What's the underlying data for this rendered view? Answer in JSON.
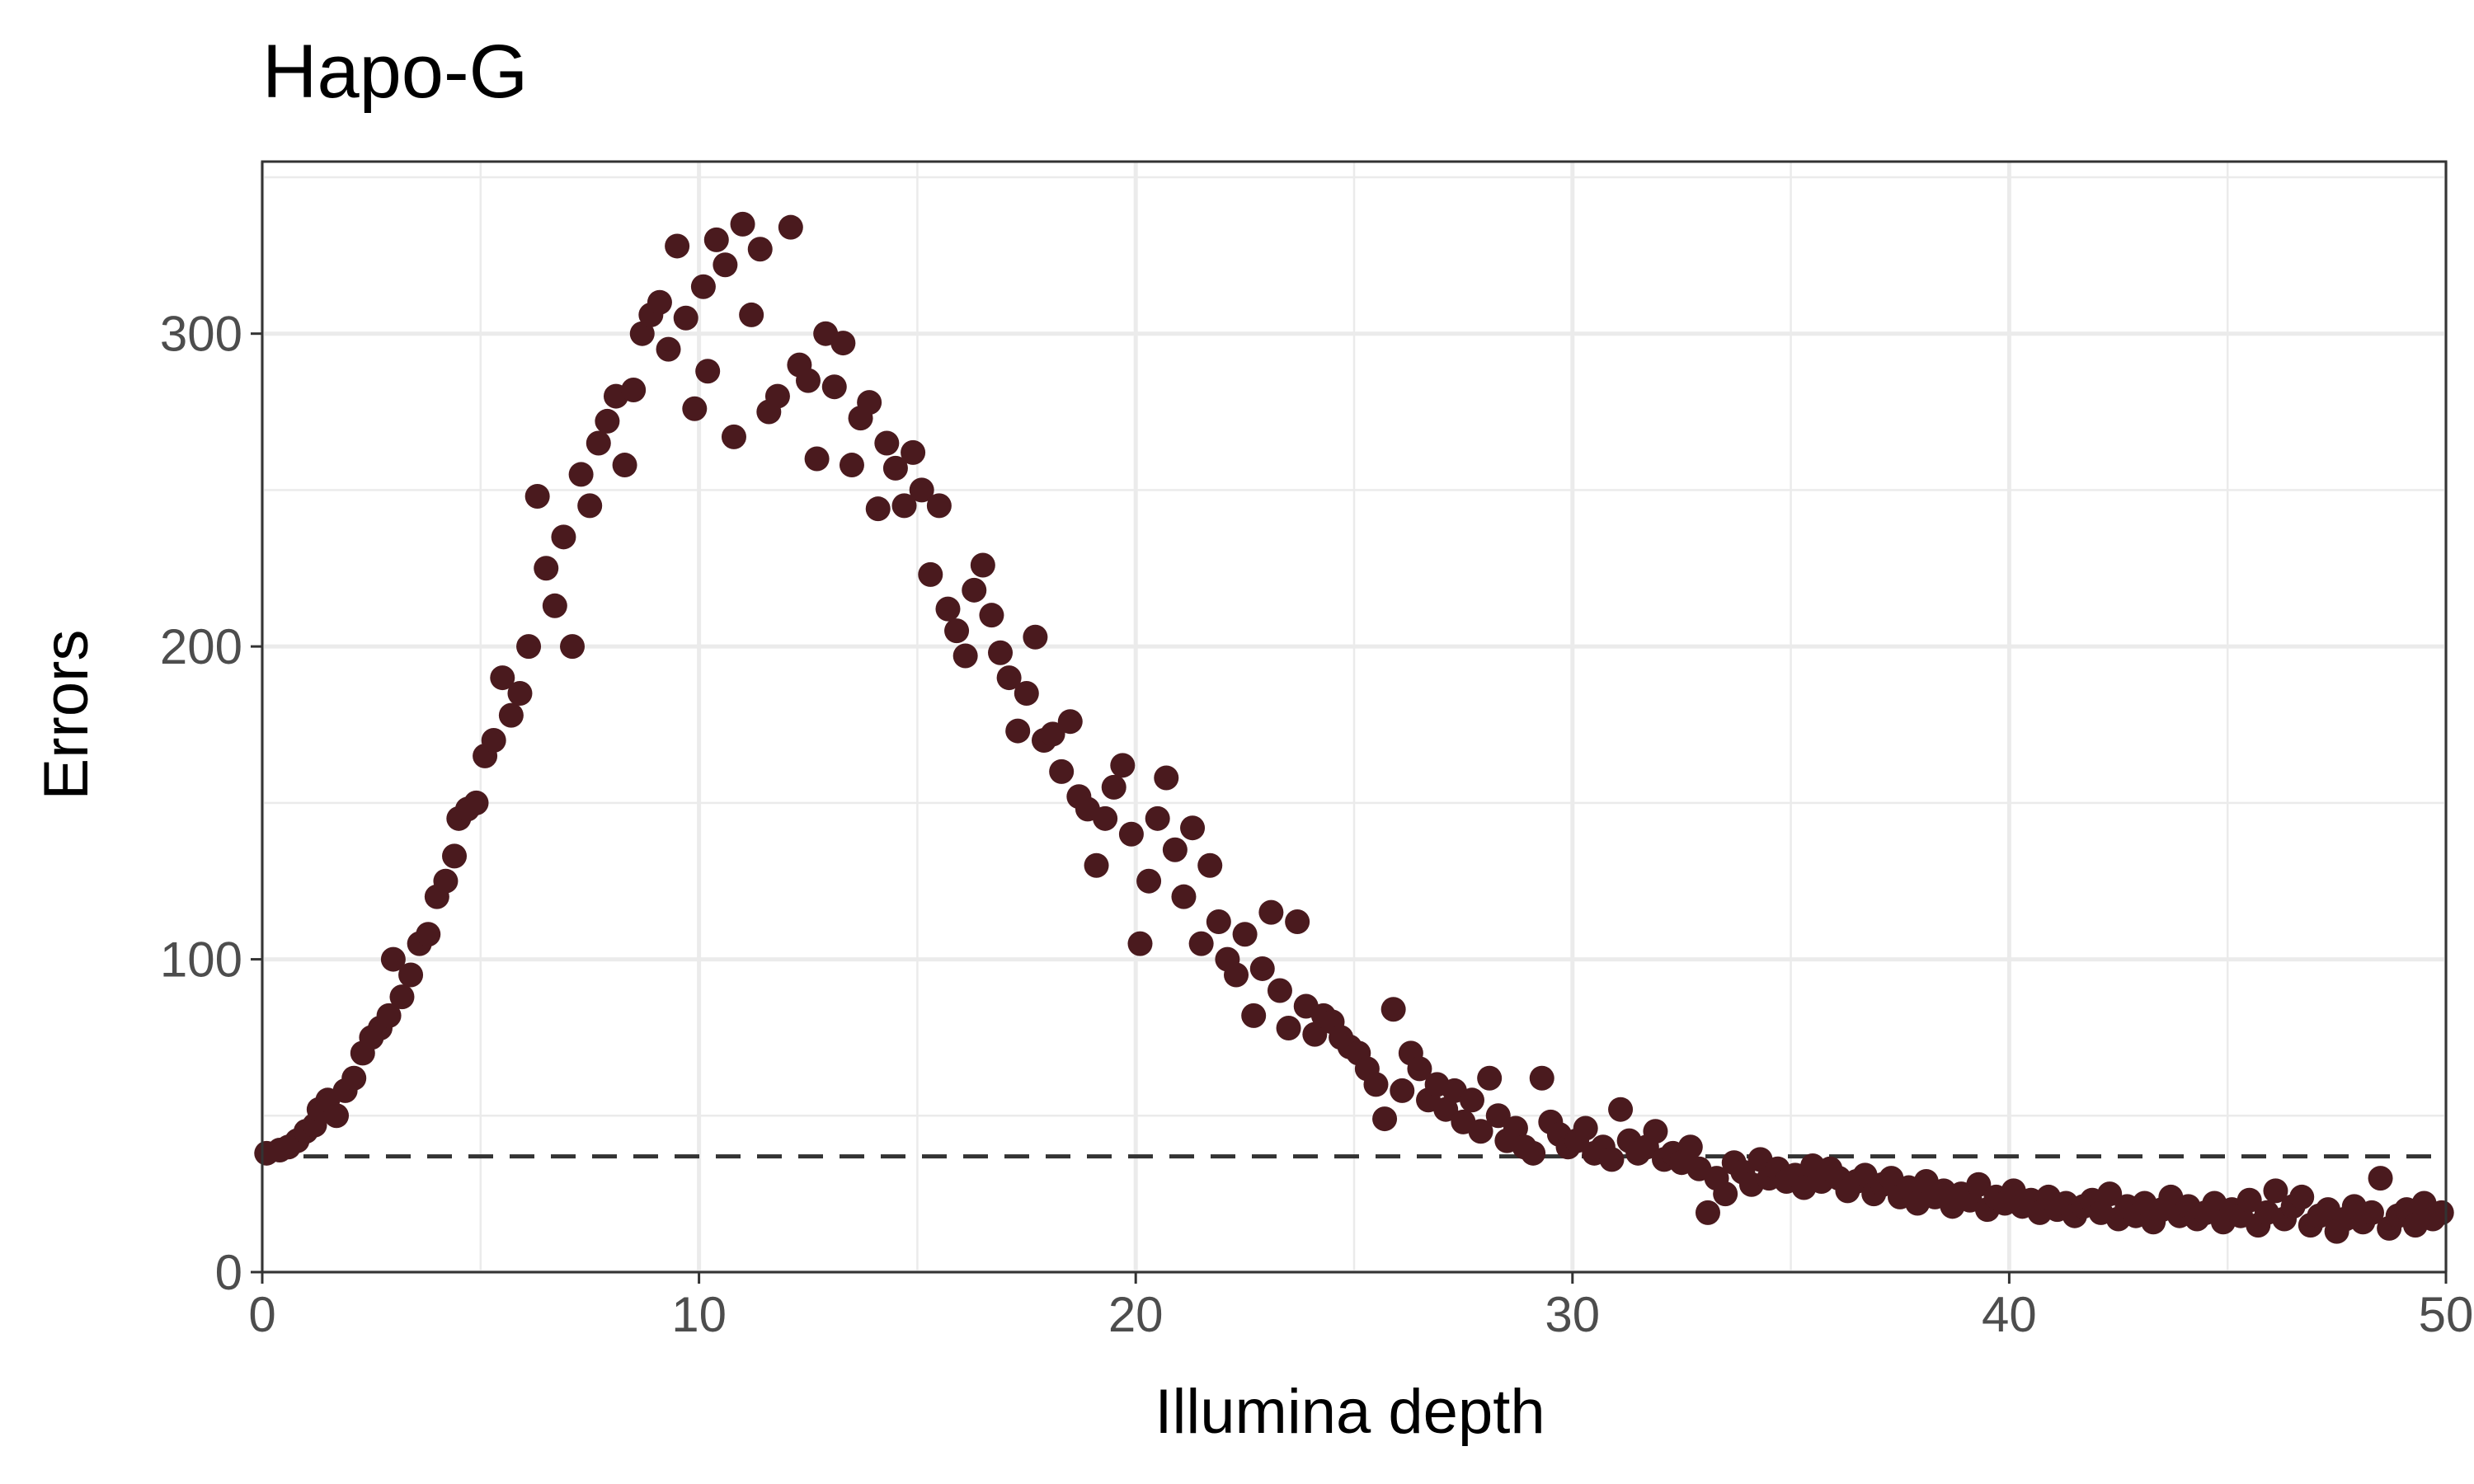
{
  "chart_data": {
    "type": "scatter",
    "title": "Hapo-G",
    "xlabel": "Illumina depth",
    "ylabel": "Errors",
    "xlim": [
      0,
      50
    ],
    "ylim": [
      0,
      355
    ],
    "x_ticks": [
      0,
      10,
      20,
      30,
      40,
      50
    ],
    "y_ticks": [
      0,
      100,
      200,
      300
    ],
    "grid": true,
    "legend": "none",
    "reference_line": {
      "y": 37,
      "style": "dashed"
    },
    "colors": {
      "points": "#4a1a1e",
      "reference_line": "#333333",
      "grid": "#ebebeb",
      "panel_border": "#333333"
    },
    "series": [
      {
        "points": [
          [
            0.1,
            38
          ],
          [
            0.4,
            39
          ],
          [
            0.6,
            40
          ],
          [
            0.8,
            42
          ],
          [
            1.0,
            45
          ],
          [
            1.2,
            47
          ],
          [
            1.3,
            52
          ],
          [
            1.5,
            55
          ],
          [
            1.7,
            50
          ],
          [
            1.9,
            58
          ],
          [
            2.1,
            62
          ],
          [
            2.3,
            70
          ],
          [
            2.5,
            75
          ],
          [
            2.7,
            78
          ],
          [
            2.9,
            82
          ],
          [
            3.0,
            100
          ],
          [
            3.2,
            88
          ],
          [
            3.4,
            95
          ],
          [
            3.6,
            105
          ],
          [
            3.8,
            108
          ],
          [
            4.0,
            120
          ],
          [
            4.2,
            125
          ],
          [
            4.4,
            133
          ],
          [
            4.5,
            145
          ],
          [
            4.7,
            148
          ],
          [
            4.9,
            150
          ],
          [
            5.1,
            165
          ],
          [
            5.3,
            170
          ],
          [
            5.5,
            190
          ],
          [
            5.7,
            178
          ],
          [
            5.9,
            185
          ],
          [
            6.1,
            200
          ],
          [
            6.3,
            248
          ],
          [
            6.5,
            225
          ],
          [
            6.7,
            213
          ],
          [
            6.9,
            235
          ],
          [
            7.1,
            200
          ],
          [
            7.3,
            255
          ],
          [
            7.5,
            245
          ],
          [
            7.7,
            265
          ],
          [
            7.9,
            272
          ],
          [
            8.1,
            280
          ],
          [
            8.3,
            258
          ],
          [
            8.5,
            282
          ],
          [
            8.7,
            300
          ],
          [
            8.9,
            306
          ],
          [
            9.1,
            310
          ],
          [
            9.3,
            295
          ],
          [
            9.5,
            328
          ],
          [
            9.7,
            305
          ],
          [
            9.9,
            276
          ],
          [
            10.1,
            315
          ],
          [
            10.2,
            288
          ],
          [
            10.4,
            330
          ],
          [
            10.6,
            322
          ],
          [
            10.8,
            267
          ],
          [
            11.0,
            335
          ],
          [
            11.2,
            306
          ],
          [
            11.4,
            327
          ],
          [
            11.6,
            275
          ],
          [
            11.8,
            280
          ],
          [
            12.1,
            334
          ],
          [
            12.3,
            290
          ],
          [
            12.5,
            285
          ],
          [
            12.7,
            260
          ],
          [
            12.9,
            300
          ],
          [
            13.1,
            283
          ],
          [
            13.3,
            297
          ],
          [
            13.5,
            258
          ],
          [
            13.7,
            273
          ],
          [
            13.9,
            278
          ],
          [
            14.1,
            244
          ],
          [
            14.3,
            265
          ],
          [
            14.5,
            257
          ],
          [
            14.7,
            245
          ],
          [
            14.9,
            262
          ],
          [
            15.1,
            250
          ],
          [
            15.3,
            223
          ],
          [
            15.5,
            245
          ],
          [
            15.7,
            212
          ],
          [
            15.9,
            205
          ],
          [
            16.1,
            197
          ],
          [
            16.3,
            218
          ],
          [
            16.5,
            226
          ],
          [
            16.7,
            210
          ],
          [
            16.9,
            198
          ],
          [
            17.1,
            190
          ],
          [
            17.3,
            173
          ],
          [
            17.5,
            185
          ],
          [
            17.7,
            203
          ],
          [
            17.9,
            170
          ],
          [
            18.1,
            172
          ],
          [
            18.3,
            160
          ],
          [
            18.5,
            176
          ],
          [
            18.7,
            152
          ],
          [
            18.9,
            148
          ],
          [
            19.1,
            130
          ],
          [
            19.3,
            145
          ],
          [
            19.5,
            155
          ],
          [
            19.7,
            162
          ],
          [
            19.9,
            140
          ],
          [
            20.1,
            105
          ],
          [
            20.3,
            125
          ],
          [
            20.5,
            145
          ],
          [
            20.7,
            158
          ],
          [
            20.9,
            135
          ],
          [
            21.1,
            120
          ],
          [
            21.3,
            142
          ],
          [
            21.5,
            105
          ],
          [
            21.7,
            130
          ],
          [
            21.9,
            112
          ],
          [
            22.1,
            100
          ],
          [
            22.3,
            95
          ],
          [
            22.5,
            108
          ],
          [
            22.7,
            82
          ],
          [
            22.9,
            97
          ],
          [
            23.1,
            115
          ],
          [
            23.3,
            90
          ],
          [
            23.5,
            78
          ],
          [
            23.7,
            112
          ],
          [
            23.9,
            85
          ],
          [
            24.1,
            76
          ],
          [
            24.3,
            82
          ],
          [
            24.5,
            80
          ],
          [
            24.7,
            75
          ],
          [
            24.9,
            72
          ],
          [
            25.1,
            70
          ],
          [
            25.3,
            65
          ],
          [
            25.5,
            60
          ],
          [
            25.7,
            49
          ],
          [
            25.9,
            84
          ],
          [
            26.1,
            58
          ],
          [
            26.3,
            70
          ],
          [
            26.5,
            65
          ],
          [
            26.7,
            55
          ],
          [
            26.9,
            60
          ],
          [
            27.1,
            52
          ],
          [
            27.3,
            58
          ],
          [
            27.5,
            48
          ],
          [
            27.7,
            55
          ],
          [
            27.9,
            45
          ],
          [
            28.1,
            62
          ],
          [
            28.3,
            50
          ],
          [
            28.5,
            42
          ],
          [
            28.7,
            46
          ],
          [
            28.9,
            40
          ],
          [
            29.1,
            38
          ],
          [
            29.3,
            62
          ],
          [
            29.5,
            48
          ],
          [
            29.7,
            44
          ],
          [
            29.9,
            40
          ],
          [
            30.1,
            42
          ],
          [
            30.3,
            46
          ],
          [
            30.5,
            38
          ],
          [
            30.7,
            40
          ],
          [
            30.9,
            36
          ],
          [
            31.1,
            52
          ],
          [
            31.3,
            42
          ],
          [
            31.5,
            38
          ],
          [
            31.7,
            40
          ],
          [
            31.9,
            45
          ],
          [
            32.1,
            36
          ],
          [
            32.3,
            38
          ],
          [
            32.5,
            35
          ],
          [
            32.7,
            40
          ],
          [
            32.9,
            33
          ],
          [
            33.1,
            19
          ],
          [
            33.3,
            30
          ],
          [
            33.5,
            25
          ],
          [
            33.7,
            35
          ],
          [
            33.9,
            32
          ],
          [
            34.1,
            28
          ],
          [
            34.3,
            36
          ],
          [
            34.5,
            30
          ],
          [
            34.7,
            33
          ],
          [
            34.9,
            29
          ],
          [
            35.1,
            31
          ],
          [
            35.3,
            27
          ],
          [
            35.5,
            34
          ],
          [
            35.7,
            29
          ],
          [
            35.9,
            33
          ],
          [
            36.1,
            30
          ],
          [
            36.3,
            26
          ],
          [
            36.5,
            29
          ],
          [
            36.7,
            31
          ],
          [
            36.9,
            25
          ],
          [
            37.1,
            28
          ],
          [
            37.3,
            30
          ],
          [
            37.5,
            24
          ],
          [
            37.7,
            27
          ],
          [
            37.9,
            22
          ],
          [
            38.1,
            29
          ],
          [
            38.3,
            24
          ],
          [
            38.5,
            26
          ],
          [
            38.7,
            21
          ],
          [
            38.9,
            25
          ],
          [
            39.1,
            23
          ],
          [
            39.3,
            28
          ],
          [
            39.5,
            20
          ],
          [
            39.7,
            24
          ],
          [
            39.9,
            22
          ],
          [
            40.1,
            26
          ],
          [
            40.3,
            21
          ],
          [
            40.5,
            23
          ],
          [
            40.7,
            19
          ],
          [
            40.9,
            24
          ],
          [
            41.1,
            20
          ],
          [
            41.3,
            22
          ],
          [
            41.5,
            18
          ],
          [
            41.7,
            21
          ],
          [
            41.9,
            23
          ],
          [
            42.1,
            19
          ],
          [
            42.3,
            25
          ],
          [
            42.5,
            17
          ],
          [
            42.7,
            21
          ],
          [
            42.9,
            18
          ],
          [
            43.1,
            22
          ],
          [
            43.3,
            16
          ],
          [
            43.5,
            20
          ],
          [
            43.7,
            24
          ],
          [
            43.9,
            18
          ],
          [
            44.1,
            21
          ],
          [
            44.3,
            17
          ],
          [
            44.5,
            19
          ],
          [
            44.7,
            22
          ],
          [
            44.9,
            16
          ],
          [
            45.1,
            20
          ],
          [
            45.3,
            18
          ],
          [
            45.5,
            23
          ],
          [
            45.7,
            15
          ],
          [
            45.9,
            19
          ],
          [
            46.1,
            26
          ],
          [
            46.3,
            17
          ],
          [
            46.5,
            21
          ],
          [
            46.7,
            24
          ],
          [
            46.9,
            15
          ],
          [
            47.1,
            18
          ],
          [
            47.3,
            20
          ],
          [
            47.5,
            13
          ],
          [
            47.7,
            17
          ],
          [
            47.9,
            21
          ],
          [
            48.1,
            16
          ],
          [
            48.3,
            19
          ],
          [
            48.5,
            30
          ],
          [
            48.7,
            14
          ],
          [
            48.9,
            18
          ],
          [
            49.1,
            20
          ],
          [
            49.3,
            15
          ],
          [
            49.5,
            22
          ],
          [
            49.7,
            17
          ],
          [
            49.9,
            19
          ]
        ]
      }
    ]
  }
}
